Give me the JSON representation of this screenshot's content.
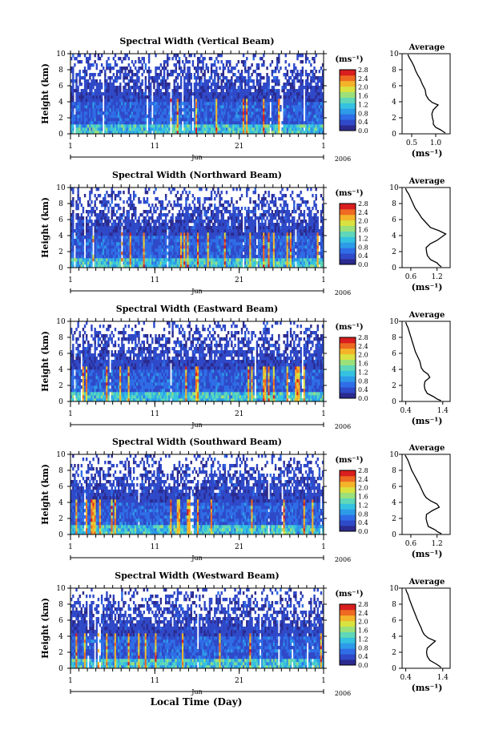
{
  "figure": {
    "month_label": "Jun",
    "year_label": "2006",
    "xlabel": "Local Time (Day)",
    "ylabel": "Height (km)",
    "unit_label": "(ms⁻¹)",
    "avg_title": "Average",
    "avg_xlabel": "(ms⁻¹)",
    "colors": {
      "colormap": [
        "#2b2a8e",
        "#2f49c8",
        "#2f6de6",
        "#2d9be8",
        "#35c2e0",
        "#5fd7b8",
        "#9be07a",
        "#d9e240",
        "#f4b42a",
        "#ee6a22",
        "#d81e1e"
      ],
      "line": "#000000",
      "background": "#ffffff"
    }
  },
  "chart_data": [
    {
      "type": "heatmap",
      "title": "Spectral Width (Vertical Beam)",
      "x_ticks": [
        "1",
        "11",
        "21",
        "1"
      ],
      "x_range_days": [
        1,
        31
      ],
      "ylim": [
        0,
        10
      ],
      "y_ticks": [
        "0",
        "2",
        "4",
        "6",
        "8",
        "10"
      ],
      "colorbar_ticks": [
        "0.0",
        "0.4",
        "0.8",
        "1.2",
        "1.6",
        "2.0",
        "2.4",
        "2.8"
      ],
      "colorbar_range": [
        0.0,
        2.8
      ],
      "avg_profile": {
        "type": "line",
        "title": "Average",
        "x_ticks": [
          "0.5",
          "1.0"
        ],
        "xlim": [
          0.3,
          1.3
        ],
        "ylim": [
          0,
          10
        ],
        "y_ticks": [
          "0",
          "2",
          "4",
          "6",
          "8",
          "10"
        ],
        "height_km": [
          0.1,
          0.3,
          0.5,
          0.8,
          1.2,
          1.6,
          2.0,
          2.5,
          3.0,
          3.3,
          3.6,
          3.9,
          4.3,
          4.8,
          5.5,
          6.2,
          6.8,
          7.4,
          7.9,
          8.4,
          9.0,
          9.5,
          9.9
        ],
        "width_ms": [
          1.2,
          1.15,
          1.1,
          1.0,
          0.95,
          0.95,
          0.93,
          0.92,
          0.95,
          1.0,
          1.05,
          0.93,
          0.85,
          0.8,
          0.78,
          0.72,
          0.68,
          0.62,
          0.58,
          0.55,
          0.5,
          0.45,
          0.42
        ]
      }
    },
    {
      "type": "heatmap",
      "title": "Spectral Width (Northward Beam)",
      "x_ticks": [
        "1",
        "11",
        "21",
        "1"
      ],
      "x_range_days": [
        1,
        31
      ],
      "ylim": [
        0,
        10
      ],
      "y_ticks": [
        "0",
        "2",
        "4",
        "6",
        "8",
        "10"
      ],
      "colorbar_ticks": [
        "0.0",
        "0.4",
        "0.8",
        "1.2",
        "1.6",
        "2.0",
        "2.4",
        "2.8"
      ],
      "colorbar_range": [
        0.0,
        2.8
      ],
      "avg_profile": {
        "type": "line",
        "title": "Average",
        "x_ticks": [
          "0.6",
          "1.2"
        ],
        "xlim": [
          0.4,
          1.5
        ],
        "ylim": [
          0,
          10
        ],
        "y_ticks": [
          "0",
          "2",
          "4",
          "6",
          "8",
          "10"
        ],
        "height_km": [
          0.1,
          0.3,
          0.6,
          1.0,
          1.5,
          2.0,
          2.5,
          3.0,
          3.4,
          3.8,
          4.2,
          4.6,
          5.0,
          5.6,
          6.2,
          6.8,
          7.4,
          8.0,
          8.6,
          9.2,
          9.6,
          9.9
        ],
        "width_ms": [
          1.3,
          1.25,
          1.2,
          1.05,
          0.98,
          0.96,
          0.95,
          1.05,
          1.2,
          1.3,
          1.4,
          1.25,
          1.05,
          0.95,
          0.85,
          0.78,
          0.7,
          0.65,
          0.6,
          0.55,
          0.5,
          0.48
        ]
      }
    },
    {
      "type": "heatmap",
      "title": "Spectral Width (Eastward Beam)",
      "x_ticks": [
        "1",
        "11",
        "21",
        "1"
      ],
      "x_range_days": [
        1,
        31
      ],
      "ylim": [
        0,
        10
      ],
      "y_ticks": [
        "0",
        "2",
        "4",
        "6",
        "8",
        "10"
      ],
      "colorbar_ticks": [
        "0.0",
        "0.4",
        "0.8",
        "1.2",
        "1.6",
        "2.0",
        "2.4",
        "2.8"
      ],
      "colorbar_range": [
        0.0,
        2.8
      ],
      "avg_profile": {
        "type": "line",
        "title": "Average",
        "x_ticks": [
          "0.4",
          "1.4"
        ],
        "xlim": [
          0.3,
          1.6
        ],
        "ylim": [
          0,
          10
        ],
        "y_ticks": [
          "0",
          "2",
          "4",
          "6",
          "8",
          "10"
        ],
        "height_km": [
          0.1,
          0.3,
          0.6,
          1.0,
          1.5,
          2.0,
          2.5,
          3.0,
          3.4,
          3.8,
          4.2,
          4.6,
          5.0,
          5.6,
          6.2,
          6.8,
          7.4,
          8.0,
          8.6,
          9.2,
          9.6,
          9.9
        ],
        "width_ms": [
          1.35,
          1.25,
          1.15,
          0.98,
          0.92,
          0.9,
          0.92,
          1.05,
          1.0,
          0.88,
          0.82,
          0.8,
          0.78,
          0.72,
          0.66,
          0.62,
          0.58,
          0.54,
          0.5,
          0.46,
          0.42,
          0.4
        ]
      }
    },
    {
      "type": "heatmap",
      "title": "Spectral Width (Southward Beam)",
      "x_ticks": [
        "1",
        "11",
        "21",
        "1"
      ],
      "x_range_days": [
        1,
        31
      ],
      "ylim": [
        0,
        10
      ],
      "y_ticks": [
        "0",
        "2",
        "4",
        "6",
        "8",
        "10"
      ],
      "colorbar_ticks": [
        "0.0",
        "0.4",
        "0.8",
        "1.2",
        "1.6",
        "2.0",
        "2.4",
        "2.8"
      ],
      "colorbar_range": [
        0.0,
        2.8
      ],
      "avg_profile": {
        "type": "line",
        "title": "Average",
        "x_ticks": [
          "0.6",
          "1.2"
        ],
        "xlim": [
          0.4,
          1.5
        ],
        "ylim": [
          0,
          10
        ],
        "y_ticks": [
          "0",
          "2",
          "4",
          "6",
          "8",
          "10"
        ],
        "height_km": [
          0.1,
          0.3,
          0.6,
          1.0,
          1.5,
          2.0,
          2.5,
          3.0,
          3.4,
          3.8,
          4.2,
          4.6,
          5.0,
          5.6,
          6.2,
          6.8,
          7.4,
          8.0,
          8.6,
          9.2,
          9.6,
          9.9
        ],
        "width_ms": [
          1.3,
          1.22,
          1.15,
          1.0,
          0.97,
          0.95,
          0.96,
          1.1,
          1.25,
          1.2,
          1.05,
          0.95,
          0.9,
          0.85,
          0.8,
          0.74,
          0.68,
          0.62,
          0.58,
          0.54,
          0.5,
          0.47
        ]
      }
    },
    {
      "type": "heatmap",
      "title": "Spectral Width (Westward Beam)",
      "x_ticks": [
        "1",
        "11",
        "21",
        "1"
      ],
      "x_range_days": [
        1,
        31
      ],
      "ylim": [
        0,
        10
      ],
      "y_ticks": [
        "0",
        "2",
        "4",
        "6",
        "8",
        "10"
      ],
      "colorbar_ticks": [
        "0.0",
        "0.4",
        "0.8",
        "1.2",
        "1.6",
        "2.0",
        "2.4",
        "2.8"
      ],
      "colorbar_range": [
        0.0,
        2.8
      ],
      "avg_profile": {
        "type": "line",
        "title": "Average",
        "x_ticks": [
          "0.4",
          "1.4"
        ],
        "xlim": [
          0.3,
          1.6
        ],
        "ylim": [
          0,
          10
        ],
        "y_ticks": [
          "0",
          "2",
          "4",
          "6",
          "8",
          "10"
        ],
        "height_km": [
          0.1,
          0.3,
          0.6,
          1.0,
          1.5,
          2.0,
          2.5,
          3.0,
          3.4,
          3.8,
          4.2,
          4.6,
          5.0,
          5.6,
          6.2,
          6.8,
          7.4,
          8.0,
          8.6,
          9.2,
          9.6,
          9.9
        ],
        "width_ms": [
          1.35,
          1.3,
          1.2,
          1.05,
          0.98,
          0.96,
          0.98,
          1.1,
          1.2,
          1.0,
          0.9,
          0.85,
          0.82,
          0.76,
          0.7,
          0.65,
          0.6,
          0.55,
          0.5,
          0.46,
          0.42,
          0.4
        ]
      }
    }
  ]
}
